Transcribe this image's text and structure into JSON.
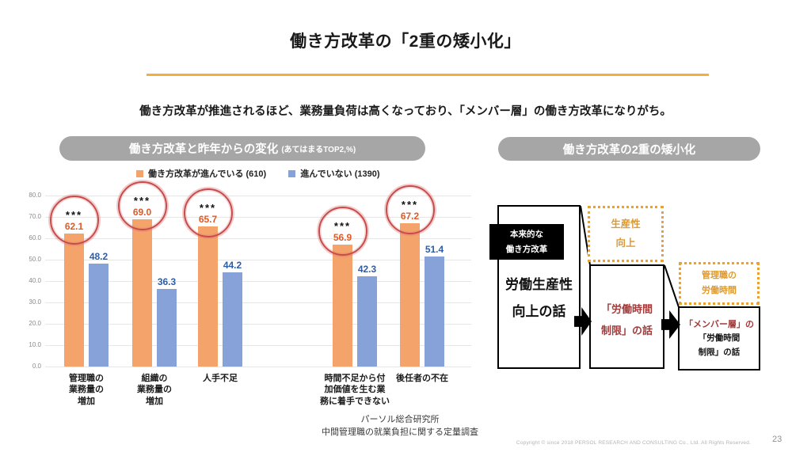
{
  "page": {
    "title": "働き方改革の「2重の矮小化」",
    "subtitle": "働き方改革が推進されるほど、業務量負荷は高くなっており、「メンバー層」の働き方改革になりがち。",
    "page_number": "23",
    "copyright": "Copyright © since 2018  PERSOL RESEARCH AND CONSULTING Co., Ltd. All Rights Reserved."
  },
  "left_panel": {
    "header": "働き方改革と昨年からの変化",
    "header_note": "(あてはまるTOP2,%)",
    "source_line1": "パーソル総合研究所",
    "source_line2": "中間管理職の就業負担に関する定量調査"
  },
  "chart_data": {
    "type": "bar",
    "title": "働き方改革と昨年からの変化(あてはまるTOP2,%)",
    "categories": [
      [
        "管理職の",
        "業務量の",
        "増加"
      ],
      [
        "組織の",
        "業務量の",
        "増加"
      ],
      [
        "人手不足"
      ],
      [
        "時間不足から付",
        "加価値を生む業",
        "務に着手できない"
      ],
      [
        "後任者の不在"
      ]
    ],
    "series": [
      {
        "name": "働き方改革が進んでいる (610)",
        "color": "#F4A46A",
        "values": [
          62.1,
          69.0,
          65.7,
          56.9,
          67.2
        ]
      },
      {
        "name": "進んでいない (1390)",
        "color": "#86A2D8",
        "values": [
          48.2,
          36.3,
          44.2,
          42.3,
          51.4
        ]
      }
    ],
    "significance": [
      "***",
      "***",
      "***",
      "***",
      "***"
    ],
    "highlight_circles": [
      true,
      true,
      true,
      true,
      true
    ],
    "xlabel": "",
    "ylabel": "",
    "ylim": [
      0,
      80
    ],
    "ytick_step": 10,
    "ytick_format_decimals": 1,
    "grid": true,
    "legend_position": "top"
  },
  "right_panel": {
    "header": "働き方改革の2重の矮小化",
    "origin_label": [
      "本来的な",
      "働き方改革"
    ],
    "box1": [
      "労働生産性",
      "向上の話"
    ],
    "dashed1": [
      "生産性",
      "向上"
    ],
    "box2": [
      "「労働時間",
      "制限」の話"
    ],
    "dashed2": [
      "管理職の",
      "労働時間"
    ],
    "box3_em": "「メンバー層」の",
    "box3_rest": [
      "「労働時間",
      "制限」の話"
    ]
  },
  "colors": {
    "accent_yellow": "#F4AE3D",
    "pill_gray": "#A6A6A6",
    "bar_orange": "#F4A46A",
    "bar_blue": "#86A2D8",
    "value_orange": "#E05A28",
    "value_blue": "#2E5DA6",
    "circle_red": "#C84B4B",
    "dark_red": "#A23B3B",
    "dashed_orange": "#E8A23B",
    "dashed_orange_text": "#DE9A30"
  }
}
